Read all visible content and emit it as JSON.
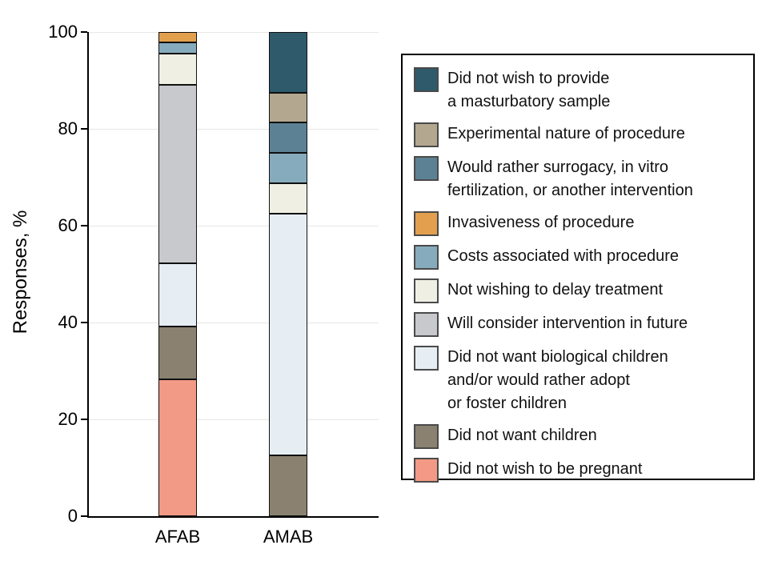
{
  "chart_data": {
    "type": "bar",
    "stacked": true,
    "title": "",
    "xlabel": "",
    "ylabel": "Responses, %",
    "ylim": [
      0,
      100
    ],
    "yticks": [
      0,
      20,
      40,
      60,
      80,
      100
    ],
    "grid": "horizontal",
    "legend_position": "right",
    "legend_order": "reverse-of-stack (top legend item is top stack segment)",
    "categories": [
      "AFAB",
      "AMAB"
    ],
    "series": [
      {
        "name": "Did not wish to be pregnant",
        "color": "#f29a85",
        "values": [
          28.3,
          0
        ]
      },
      {
        "name": "Did not want children",
        "color": "#8a8171",
        "values": [
          10.9,
          12.5
        ]
      },
      {
        "name": "Did not want biological children\nand/or would rather adopt\nor foster children",
        "color": "#e6eef3",
        "values": [
          13.0,
          50.0
        ]
      },
      {
        "name": "Will consider intervention in future",
        "color": "#c7c9cc",
        "values": [
          36.9,
          0
        ]
      },
      {
        "name": "Not wishing to delay treatment",
        "color": "#f0efe4",
        "values": [
          6.5,
          6.25
        ]
      },
      {
        "name": "Costs associated with procedure",
        "color": "#86abbd",
        "values": [
          2.2,
          6.25
        ]
      },
      {
        "name": "Invasiveness of procedure",
        "color": "#e2a04e",
        "values": [
          2.2,
          0
        ]
      },
      {
        "name": "Would rather surrogacy, in vitro\nfertilization, or another intervention",
        "color": "#5d8194",
        "values": [
          0,
          6.25
        ]
      },
      {
        "name": "Experimental nature of procedure",
        "color": "#b3a78f",
        "values": [
          0,
          6.25
        ]
      },
      {
        "name": "Did not wish to provide\na masturbatory sample",
        "color": "#2e5a6b",
        "values": [
          0,
          12.5
        ]
      }
    ]
  },
  "style_colors": {
    "axis": "#000000",
    "gridline": "#e7e7e5",
    "segment_border": "#101010",
    "background": "#ffffff"
  }
}
